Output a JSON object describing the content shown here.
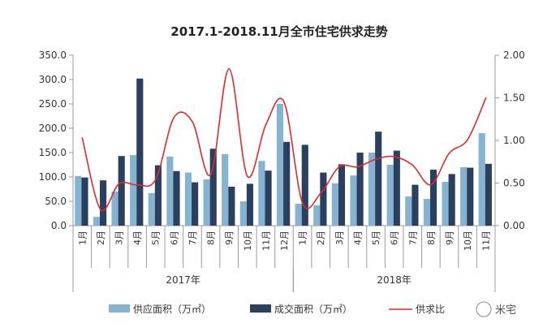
{
  "watermark": "米宅",
  "colors": {
    "supply": "#87B3D3",
    "deal": "#2B3F5E",
    "ratio": "#E0292E"
  },
  "chart_data": {
    "type": "bar",
    "title": "2017.1-2018.11月全市住宅供求走势",
    "categories": [
      "1月",
      "2月",
      "3月",
      "4月",
      "5月",
      "6月",
      "7月",
      "8月",
      "9月",
      "10月",
      "11月",
      "12月",
      "1月",
      "2月",
      "3月",
      "4月",
      "5月",
      "6月",
      "7月",
      "8月",
      "9月",
      "10月",
      "11月"
    ],
    "groups": [
      {
        "label": "2017年",
        "start": 0,
        "count": 12
      },
      {
        "label": "2018年",
        "start": 12,
        "count": 11
      }
    ],
    "y_left": {
      "ticks": [
        "0.0",
        "50.0",
        "100.0",
        "150.0",
        "200.0",
        "250.0",
        "300.0",
        "350.0"
      ],
      "range": [
        0,
        350
      ]
    },
    "y_right": {
      "ticks": [
        "0.00",
        "0.50",
        "1.00",
        "1.50",
        "2.00"
      ],
      "range": [
        0,
        2
      ]
    },
    "series": [
      {
        "name": "供应面积（万㎡）",
        "type": "bar",
        "axis": "left",
        "values": [
          102,
          18,
          70,
          145,
          67,
          142,
          109,
          95,
          147,
          50,
          133,
          250,
          45,
          42,
          87,
          103,
          150,
          125,
          60,
          55,
          90,
          120,
          190
        ]
      },
      {
        "name": "成交面积（万㎡）",
        "type": "bar",
        "axis": "left",
        "values": [
          99,
          93,
          143,
          302,
          124,
          112,
          89,
          158,
          80,
          86,
          113,
          172,
          166,
          109,
          126,
          150,
          193,
          154,
          84,
          115,
          106,
          119,
          127
        ]
      },
      {
        "name": "供求比",
        "type": "line",
        "axis": "right",
        "values": [
          1.03,
          0.19,
          0.49,
          0.48,
          0.54,
          1.27,
          1.22,
          0.6,
          1.84,
          0.58,
          1.18,
          1.45,
          0.27,
          0.38,
          0.69,
          0.69,
          0.78,
          0.81,
          0.71,
          0.48,
          0.85,
          1.01,
          1.5
        ]
      }
    ],
    "legend_position": "bottom",
    "grid": false
  }
}
